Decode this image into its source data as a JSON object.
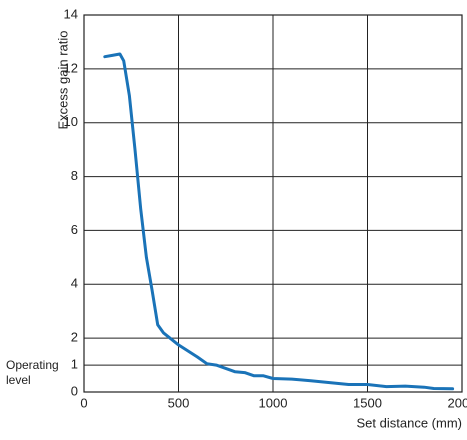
{
  "chart_data": {
    "type": "line",
    "y_label": "Excess gain ratio",
    "x_label": "Set distance (mm)",
    "annotation": "Operating level",
    "xlim": [
      0,
      2000
    ],
    "ylim": [
      0,
      14
    ],
    "xticks": [
      0,
      500,
      1000,
      1500,
      2000
    ],
    "yticks": [
      0,
      1,
      2,
      4,
      6,
      8,
      10,
      12,
      14
    ],
    "grid": true,
    "series": [
      {
        "color": "#1a73b8",
        "x": [
          110,
          150,
          190,
          210,
          240,
          270,
          300,
          330,
          360,
          390,
          420,
          500,
          600,
          650,
          700,
          800,
          850,
          900,
          950,
          1000,
          1100,
          1200,
          1300,
          1400,
          1500,
          1600,
          1700,
          1800,
          1850,
          1950
        ],
        "values": [
          12.45,
          12.5,
          12.55,
          12.3,
          11.0,
          9.0,
          6.8,
          5.0,
          3.8,
          2.5,
          2.2,
          1.75,
          1.3,
          1.05,
          1.0,
          0.75,
          0.72,
          0.6,
          0.6,
          0.5,
          0.48,
          0.42,
          0.35,
          0.28,
          0.28,
          0.2,
          0.22,
          0.18,
          0.13,
          0.12
        ]
      }
    ]
  }
}
